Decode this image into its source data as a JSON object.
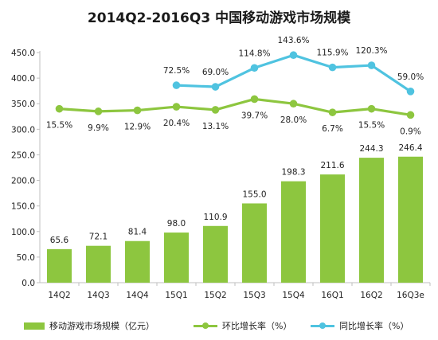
{
  "chart_data": {
    "type": "bar",
    "title": "2014Q2-2016Q3 中国移动游戏市场规模",
    "categories": [
      "14Q2",
      "14Q3",
      "14Q4",
      "15Q1",
      "15Q2",
      "15Q3",
      "15Q4",
      "16Q1",
      "16Q2",
      "16Q3e"
    ],
    "ylim": [
      0,
      450
    ],
    "yticks": [
      "0.0",
      "50.0",
      "100.0",
      "150.0",
      "200.0",
      "250.0",
      "300.0",
      "350.0",
      "400.0",
      "450.0"
    ],
    "grid": false,
    "legend_position": "bottom",
    "series": [
      {
        "name": "移动游戏市场规模（亿元）",
        "kind": "bar",
        "color": "#8dc63f",
        "values": [
          65.6,
          72.1,
          81.4,
          98.0,
          110.9,
          155.0,
          198.3,
          211.6,
          244.3,
          246.4
        ],
        "labels": [
          "65.6",
          "72.1",
          "81.4",
          "98.0",
          "110.9",
          "155.0",
          "198.3",
          "211.6",
          "244.3",
          "246.4"
        ]
      },
      {
        "name": "环比增长率（%）",
        "kind": "line",
        "color": "#8dc63f",
        "plot_y": [
          340,
          335,
          337,
          344,
          338,
          359,
          350,
          333,
          340,
          328
        ],
        "labels": [
          "15.5%",
          "9.9%",
          "12.9%",
          "20.4%",
          "13.1%",
          "39.7%",
          "28.0%",
          "6.7%",
          "15.5%",
          "0.9%"
        ]
      },
      {
        "name": "同比增长率（%）",
        "kind": "line",
        "color": "#4fc3e0",
        "start_index": 3,
        "plot_y": [
          386,
          383,
          420,
          445,
          421,
          425,
          374
        ],
        "labels": [
          "72.5%",
          "69.0%",
          "114.8%",
          "143.6%",
          "115.9%",
          "120.3%",
          "59.0%"
        ]
      }
    ]
  }
}
